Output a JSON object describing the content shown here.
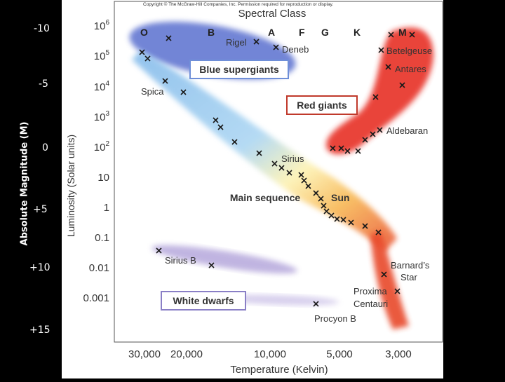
{
  "copyright": "Copyright © The McGraw-Hill Companies, Inc. Permission required for reproduction or display.",
  "spectral_class_title": "Spectral Class",
  "spectral_classes": [
    "O",
    "B",
    "A",
    "F",
    "G",
    "K",
    "M"
  ],
  "luminosity_axis_title": "Luminosity (Solar units)",
  "luminosity_ticks": {
    "powers": [
      {
        "base": "10",
        "exp": "6"
      },
      {
        "base": "10",
        "exp": "5"
      },
      {
        "base": "10",
        "exp": "4"
      },
      {
        "base": "10",
        "exp": "3"
      },
      {
        "base": "10",
        "exp": "2"
      }
    ],
    "plain": [
      "10",
      "1",
      "0.1",
      "0.01",
      "0.001"
    ]
  },
  "temperature_axis_title": "Temperature (Kelvin)",
  "temperature_ticks": [
    "30,000",
    "20,000",
    "10,000",
    "5,000",
    "3,000"
  ],
  "magnitude_axis_title": "Absolute Magnitude (M)",
  "magnitude_ticks": [
    "-10",
    "-5",
    "0",
    "+5",
    "+10",
    "+15"
  ],
  "regions": {
    "blue_supergiants": "Blue supergiants",
    "red_giants": "Red giants",
    "main_sequence": "Main sequence",
    "white_dwarfs": "White dwarfs"
  },
  "star_names": {
    "rigel": "Rigel",
    "deneb": "Deneb",
    "spica": "Spica",
    "betelgeuse": "Betelgeuse",
    "antares": "Antares",
    "aldebaran": "Aldebaran",
    "sirius": "Sirius",
    "sun": "Sun",
    "sirius_b": "Sirius B",
    "barnards_line1": "Barnard’s",
    "barnards_line2": "Star",
    "proxima_line1": "Proxima",
    "proxima_line2": "Centauri",
    "procyon_b": "Procyon B"
  },
  "colors": {
    "background": "#000000",
    "panel": "#ffffff",
    "red_giants_box": "#c0392b",
    "white_dwarfs_box": "#8a7fc6",
    "blue_supergiants_box": "#6f8fd8"
  }
}
